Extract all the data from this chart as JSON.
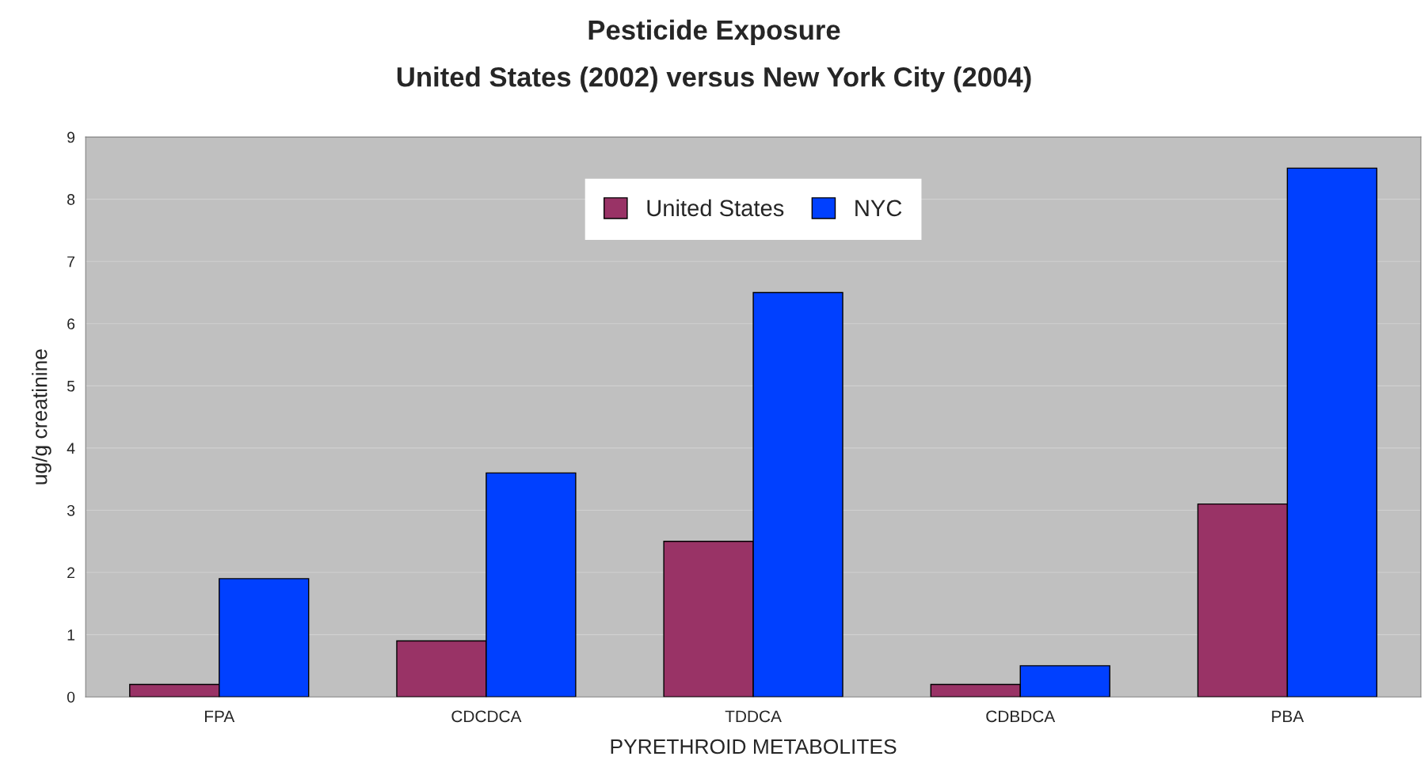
{
  "chart_data": {
    "type": "bar",
    "title": "Pesticide Exposure",
    "subtitle": "United States (2002) versus New York City (2004)",
    "xlabel": "PYRETHROID METABOLITES",
    "ylabel": "ug/g creatinine",
    "categories": [
      "FPA",
      "CDCDCA",
      "TDDCA",
      "CDBDCA",
      "PBA"
    ],
    "series": [
      {
        "name": "United States",
        "color": "#993366",
        "values": [
          0.2,
          0.9,
          2.5,
          0.2,
          3.1
        ]
      },
      {
        "name": "NYC",
        "color": "#0040ff",
        "values": [
          1.9,
          3.6,
          6.5,
          0.5,
          8.5
        ]
      }
    ],
    "ylim": [
      0,
      9
    ],
    "yticks": [
      0,
      1,
      2,
      3,
      4,
      5,
      6,
      7,
      8,
      9
    ],
    "grid": "y",
    "legend": "top"
  }
}
